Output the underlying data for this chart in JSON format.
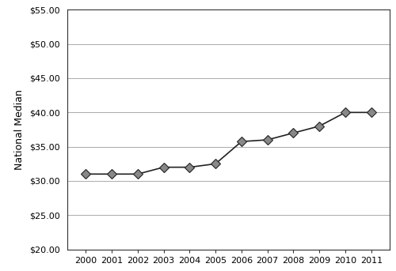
{
  "years": [
    2000,
    2001,
    2002,
    2003,
    2004,
    2005,
    2006,
    2007,
    2008,
    2009,
    2010,
    2011
  ],
  "values": [
    31.0,
    31.0,
    31.0,
    32.0,
    32.0,
    32.5,
    35.75,
    36.0,
    37.0,
    38.0,
    40.0,
    40.0
  ],
  "ylabel": "National Median",
  "ylim": [
    20.0,
    55.0
  ],
  "yticks": [
    20.0,
    25.0,
    30.0,
    35.0,
    40.0,
    45.0,
    50.0,
    55.0
  ],
  "line_color": "#222222",
  "marker_facecolor": "#888888",
  "marker_edge_color": "#222222",
  "background_color": "#ffffff",
  "grid_color": "#aaaaaa",
  "spine_color": "#333333",
  "tick_label_fontsize": 8,
  "ylabel_fontsize": 9
}
